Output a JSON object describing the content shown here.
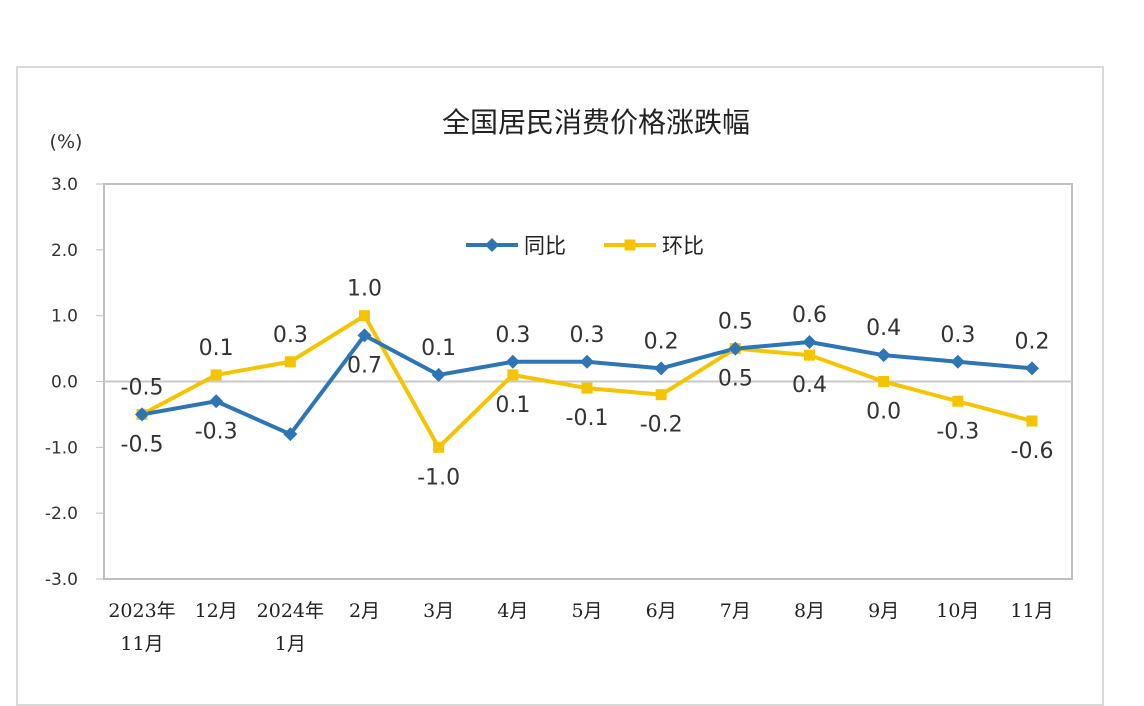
{
  "chart_data": {
    "type": "line",
    "title": "全国居民消费价格涨跌幅",
    "ylabel": "(%)",
    "ylim": [
      -3.0,
      3.0
    ],
    "yticks": [
      "3.0",
      "2.0",
      "1.0",
      "0.0",
      "-1.0",
      "-2.0",
      "-3.0"
    ],
    "categories": [
      [
        "2023年",
        "11月"
      ],
      [
        "12月"
      ],
      [
        "2024年",
        "1月"
      ],
      [
        "2月"
      ],
      [
        "3月"
      ],
      [
        "4月"
      ],
      [
        "5月"
      ],
      [
        "6月"
      ],
      [
        "7月"
      ],
      [
        "8月"
      ],
      [
        "9月"
      ],
      [
        "10月"
      ],
      [
        "11月"
      ]
    ],
    "series": [
      {
        "name": "同比",
        "color": "#2e75b6",
        "marker": "diamond",
        "values": [
          -0.5,
          -0.3,
          -0.8,
          0.7,
          0.1,
          0.3,
          0.3,
          0.2,
          0.5,
          0.6,
          0.4,
          0.3,
          0.2
        ],
        "labels": [
          "-0.5",
          "-0.3",
          "",
          "0.7",
          "0.1",
          "0.3",
          "0.3",
          "0.2",
          "0.5",
          "0.6",
          "0.4",
          "0.3",
          "0.2"
        ],
        "label_pos": [
          "below",
          "below",
          "none",
          "below",
          "above",
          "above",
          "above",
          "above",
          "above",
          "above",
          "above",
          "above",
          "above"
        ]
      },
      {
        "name": "环比",
        "color": "#f5c400",
        "marker": "square",
        "values": [
          -0.5,
          0.1,
          0.3,
          1.0,
          -1.0,
          0.1,
          -0.1,
          -0.2,
          0.5,
          0.4,
          0.0,
          -0.3,
          -0.6
        ],
        "labels": [
          "-0.5",
          "0.1",
          "0.3",
          "1.0",
          "-1.0",
          "0.1",
          "-0.1",
          "-0.2",
          "0.5",
          "0.4",
          "0.0",
          "-0.3",
          "-0.6"
        ],
        "label_pos": [
          "above",
          "above",
          "above",
          "above",
          "below",
          "below",
          "below",
          "below",
          "below",
          "below",
          "below",
          "below",
          "below"
        ]
      }
    ],
    "legend_position": "top-center",
    "grid": false
  }
}
